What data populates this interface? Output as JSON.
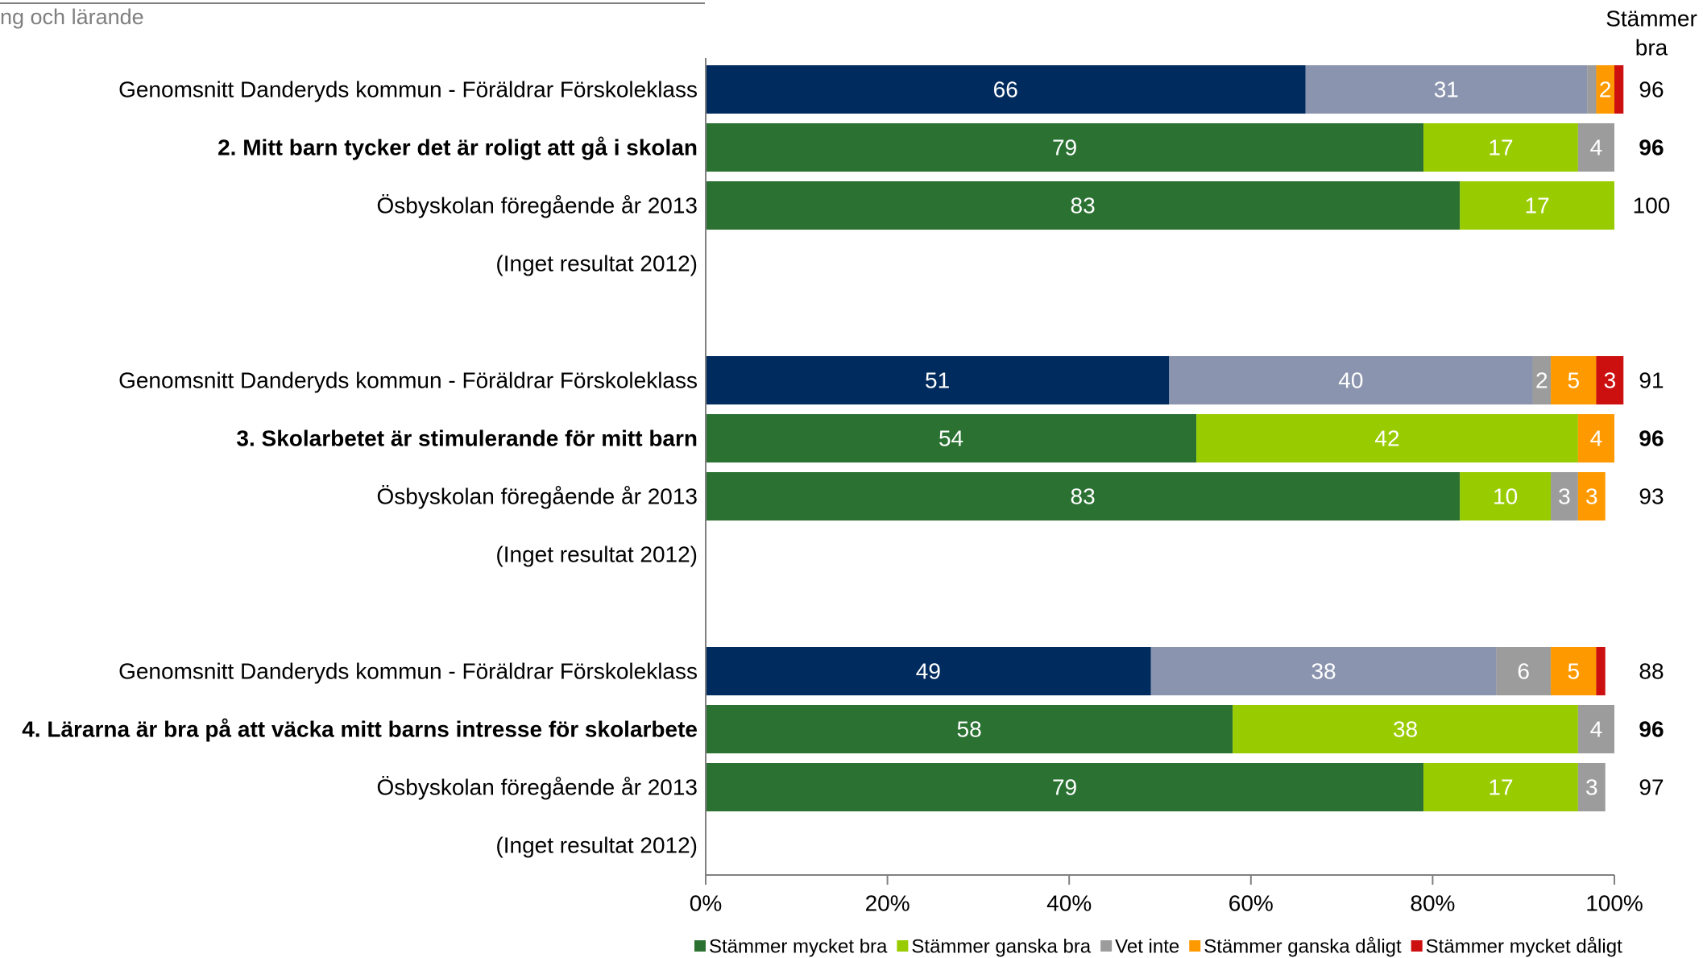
{
  "header": {
    "title": "ng och lärande"
  },
  "chart_data": {
    "type": "bar",
    "orientation": "horizontal",
    "stacked": true,
    "total_header": [
      "Stämmer",
      "bra"
    ],
    "xlim": [
      0,
      100
    ],
    "x_ticks": [
      "0%",
      "20%",
      "40%",
      "60%",
      "80%",
      "100%"
    ],
    "grid": false,
    "legend_position": "bottom",
    "series": [
      {
        "name": "Stämmer mycket bra",
        "color": "#2a7132"
      },
      {
        "name": "Stämmer ganska bra",
        "color": "#99cc00"
      },
      {
        "name": "Vet inte",
        "color": "#9c9c9c"
      },
      {
        "name": "Stämmer ganska dåligt",
        "color": "#ff9900"
      },
      {
        "name": "Stämmer mycket dåligt",
        "color": "#cc1010"
      }
    ],
    "alt_colors": [
      "#002b5e",
      "#8a94ae",
      "#9c9c9c",
      "#ff9900",
      "#cc1010"
    ],
    "groups": [
      {
        "rows": [
          {
            "label": "Genomsnitt Danderyds kommun - Föräldrar Förskoleklass",
            "bold": false,
            "palette": "alt",
            "values": [
              66,
              31,
              1,
              2,
              1
            ],
            "labels": [
              "66",
              "31",
              "1",
              "2",
              "1"
            ],
            "total": "96"
          },
          {
            "label": "2. Mitt barn tycker det är roligt att gå i skolan",
            "bold": true,
            "palette": "main",
            "values": [
              79,
              17,
              4,
              0,
              0
            ],
            "labels": [
              "79",
              "17",
              "4",
              "0",
              "0"
            ],
            "total": "96"
          },
          {
            "label": "Ösbyskolan föregående år 2013",
            "bold": false,
            "palette": "main",
            "values": [
              83,
              17,
              0,
              0,
              0
            ],
            "labels": [
              "83",
              "17",
              "0",
              "0",
              "0"
            ],
            "total": "100"
          },
          {
            "label": "(Inget resultat 2012)",
            "bold": false,
            "empty": true
          }
        ]
      },
      {
        "rows": [
          {
            "label": "Genomsnitt Danderyds kommun - Föräldrar Förskoleklass",
            "bold": false,
            "palette": "alt",
            "values": [
              51,
              40,
              2,
              5,
              3
            ],
            "labels": [
              "51",
              "40",
              "2",
              "5",
              "3"
            ],
            "total": "91"
          },
          {
            "label": "3. Skolarbetet är stimulerande för mitt barn",
            "bold": true,
            "palette": "main",
            "values": [
              54,
              42,
              0,
              4,
              0
            ],
            "labels": [
              "54",
              "42",
              "0",
              "4",
              "0"
            ],
            "total": "96"
          },
          {
            "label": "Ösbyskolan föregående år 2013",
            "bold": false,
            "palette": "main",
            "values": [
              83,
              10,
              3,
              3,
              0
            ],
            "labels": [
              "83",
              "10",
              "3",
              "3",
              "0"
            ],
            "total": "93"
          },
          {
            "label": "(Inget resultat 2012)",
            "bold": false,
            "empty": true
          }
        ]
      },
      {
        "rows": [
          {
            "label": "Genomsnitt Danderyds kommun - Föräldrar Förskoleklass",
            "bold": false,
            "palette": "alt",
            "values": [
              49,
              38,
              6,
              5,
              1
            ],
            "labels": [
              "49",
              "38",
              "6",
              "5",
              "1"
            ],
            "total": "88"
          },
          {
            "label": "4. Lärarna är bra på att väcka mitt barns intresse för skolarbete",
            "bold": true,
            "palette": "main",
            "values": [
              58,
              38,
              4,
              0,
              0
            ],
            "labels": [
              "58",
              "38",
              "4",
              "0",
              "0"
            ],
            "total": "96"
          },
          {
            "label": "Ösbyskolan föregående år 2013",
            "bold": false,
            "palette": "main",
            "values": [
              79,
              17,
              3,
              0,
              0
            ],
            "labels": [
              "79",
              "17",
              "3",
              "0",
              "0"
            ],
            "total": "97"
          },
          {
            "label": "(Inget resultat 2012)",
            "bold": false,
            "empty": true
          }
        ]
      }
    ]
  }
}
